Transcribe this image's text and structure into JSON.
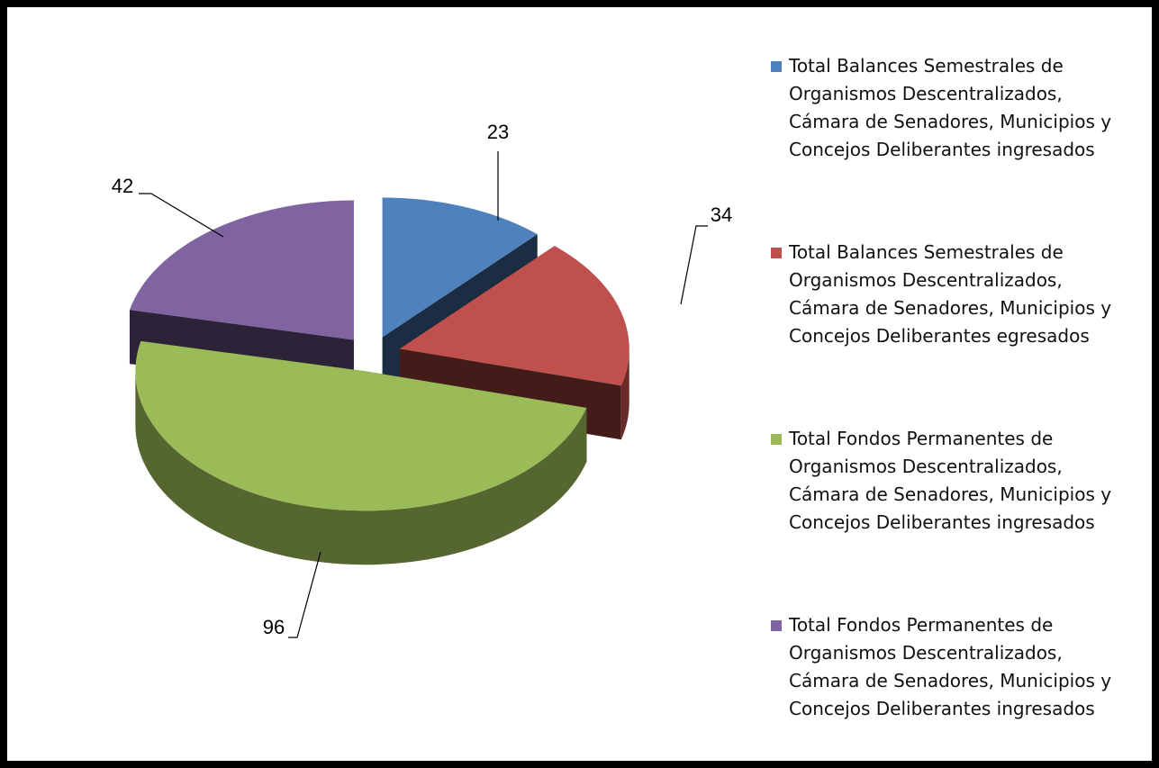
{
  "chart_data": {
    "type": "pie",
    "categories": [
      "Total Balances Semestrales de Organismos Descentralizados, Cámara de Senadores, Municipios y Concejos Deliberantes ingresados",
      "Total Balances Semestrales de Organismos Descentralizados, Cámara de Senadores, Municipios y Concejos Deliberantes egresados",
      "Total Fondos Permanentes de Organismos Descentralizados, Cámara de Senadores, Municipios y Concejos Deliberantes ingresados",
      "Total Fondos Permanentes de Organismos Descentralizados, Cámara de Senadores, Municipios y Concejos Deliberantes ingresados"
    ],
    "values": [
      23,
      34,
      96,
      42
    ],
    "colors": [
      "#4f81bd",
      "#c0504d",
      "#9bbb59",
      "#8064a2"
    ],
    "legend": "right"
  }
}
